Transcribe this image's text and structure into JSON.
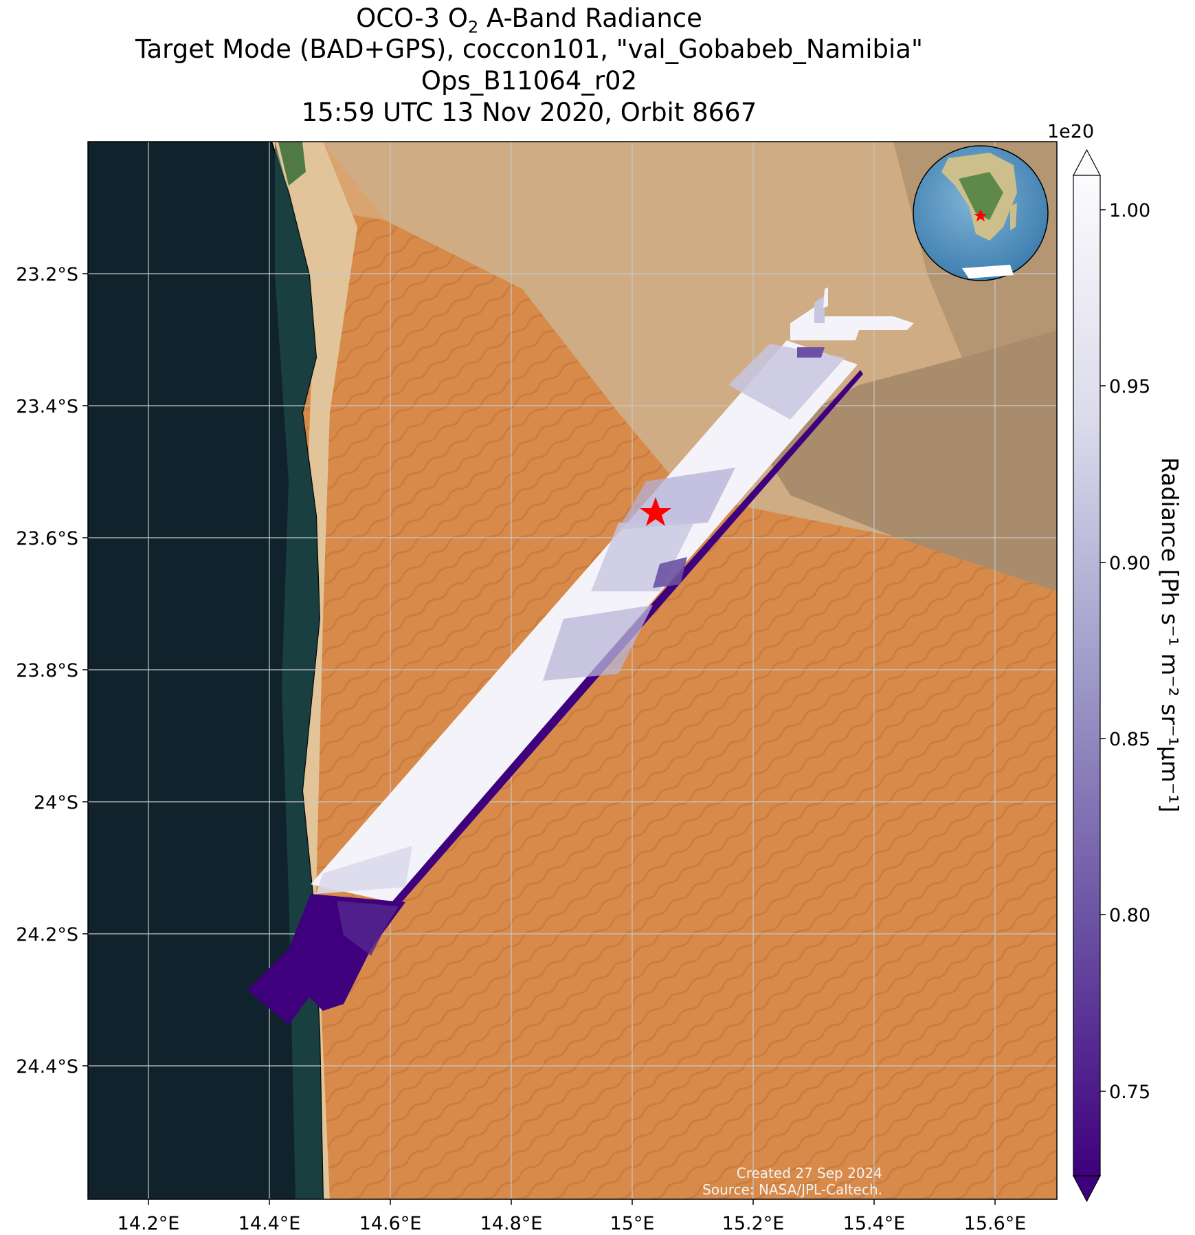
{
  "title": {
    "line1_prefix": "OCO-3 O",
    "line1_sub": "2",
    "line1_suffix": " A-Band Radiance",
    "line2": "Target Mode (BAD+GPS), coccon101, \"val_Gobabeb_Namibia\"",
    "line3": "Ops_B11064_r02",
    "line4": "15:59 UTC 13 Nov 2020, Orbit 8667"
  },
  "map": {
    "lon_ticks": [
      "14.2°E",
      "14.4°E",
      "14.6°E",
      "14.8°E",
      "15°E",
      "15.2°E",
      "15.4°E",
      "15.6°E"
    ],
    "lat_ticks": [
      "23.2°S",
      "23.4°S",
      "23.6°S",
      "23.8°S",
      "24°S",
      "24.2°S",
      "24.4°S"
    ],
    "target_marker": "red-star",
    "credit_created": "Created 27 Sep 2024",
    "credit_source": "Source: NASA/JPL-Caltech."
  },
  "colorbar": {
    "exponent": "1e20",
    "ticks": [
      "1.00",
      "0.95",
      "0.90",
      "0.85",
      "0.80",
      "0.75"
    ],
    "label": "Radiance [Ph s⁻¹ m⁻² sr⁻¹μm⁻¹]",
    "colormap": "Purples",
    "color_low": "#3f007d",
    "color_high": "#fcfbfd"
  },
  "inset": {
    "type": "globe",
    "marker": "red-star"
  }
}
